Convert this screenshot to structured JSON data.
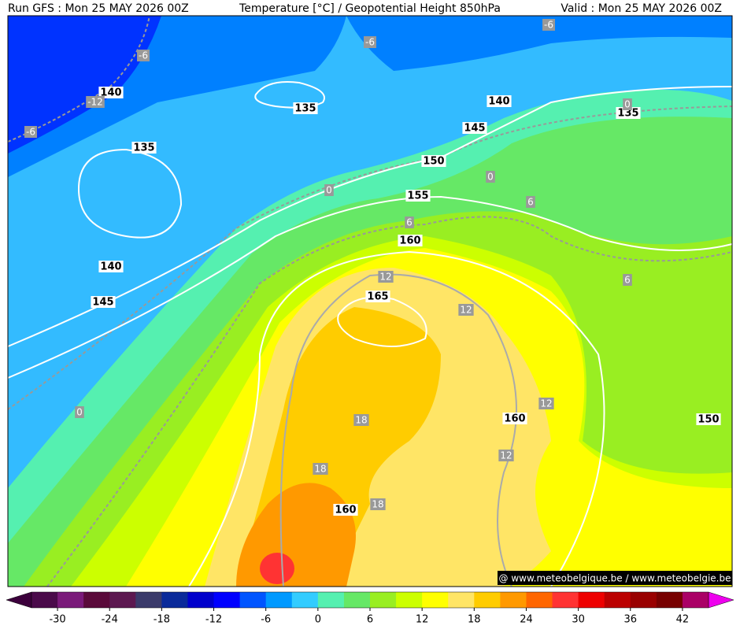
{
  "header": {
    "left": "Run GFS : Mon 25 MAY 2026 00Z",
    "center": "Temperature [°C] / Geopotential Height 850hPa",
    "right": "Valid : Mon 25 MAY 2026 00Z"
  },
  "height_labels": [
    140,
    135,
    140,
    135,
    145,
    135,
    150,
    155,
    160,
    165,
    140,
    145,
    160,
    150,
    160
  ],
  "temperature_labels": [
    -6,
    -6,
    -12,
    -6,
    -6,
    0,
    0,
    0,
    6,
    6,
    6,
    12,
    12,
    12,
    12,
    18,
    18,
    18,
    0
  ],
  "watermark": "@ www.meteobelgique.be / www.meteobelgie.be",
  "colorbar": {
    "lim": [
      -33,
      45
    ],
    "ticks": [
      -30,
      -24,
      -18,
      -12,
      -6,
      0,
      6,
      12,
      18,
      24,
      30,
      36,
      42
    ],
    "under_color": "#3c003c",
    "over_color": "#ee00ee",
    "colors": [
      "#4a0a4a",
      "#7a1a7a",
      "#5a0a3a",
      "#5c1850",
      "#3a3a6a",
      "#0a2a9a",
      "#0000cc",
      "#0000ff",
      "#0055ff",
      "#0099ff",
      "#33ccff",
      "#55f0b0",
      "#66e866",
      "#99ee22",
      "#ccff00",
      "#ffff00",
      "#ffe566",
      "#ffcc00",
      "#ff9900",
      "#ff6600",
      "#ff3333",
      "#ee0000",
      "#bb0000",
      "#990000",
      "#770000",
      "#aa0066"
    ]
  }
}
